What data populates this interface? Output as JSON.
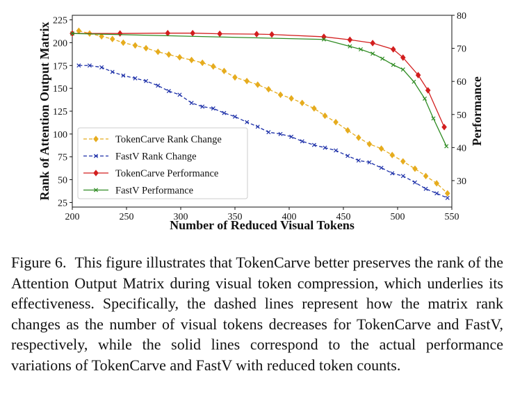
{
  "chart_data": {
    "type": "line",
    "xlabel": "Number of Reduced Visual Tokens",
    "ylabel": "Rank of Attention Output Matrix",
    "ylabel_right": "Performance",
    "xlim": [
      200,
      550
    ],
    "ylim": [
      20,
      230
    ],
    "ylim_right": [
      22,
      80
    ],
    "x_ticks": [
      200,
      250,
      300,
      350,
      400,
      450,
      500,
      550
    ],
    "y_ticks": [
      25,
      50,
      75,
      100,
      125,
      150,
      175,
      200,
      225
    ],
    "y_ticks_right": [
      30,
      40,
      50,
      60,
      70,
      80
    ],
    "legend_position": "lower-left",
    "series": [
      {
        "name": "TokenCarve Rank Change",
        "axis": "left",
        "style": "dashed",
        "marker": "diamond",
        "color": "#e6ac1e",
        "x": [
          206,
          216,
          227,
          237,
          247,
          258,
          268,
          279,
          289,
          299,
          310,
          320,
          330,
          340,
          350,
          361,
          371,
          381,
          392,
          402,
          412,
          423,
          433,
          443,
          454,
          464,
          474,
          485,
          495,
          505,
          516,
          526,
          536,
          546
        ],
        "y": [
          213,
          210,
          207,
          204,
          200,
          197,
          194,
          190,
          187,
          184,
          181,
          178,
          174,
          169,
          162,
          158,
          154,
          149,
          143,
          139,
          134,
          128,
          120,
          113,
          104,
          96,
          89,
          84,
          77,
          70,
          62,
          54,
          46,
          35
        ]
      },
      {
        "name": "FastV Rank Change",
        "axis": "left",
        "style": "dashed",
        "marker": "x",
        "color": "#1c2fa8",
        "x": [
          206,
          216,
          227,
          237,
          247,
          258,
          268,
          279,
          289,
          299,
          310,
          320,
          330,
          340,
          350,
          361,
          371,
          381,
          392,
          402,
          412,
          423,
          433,
          443,
          454,
          464,
          474,
          485,
          495,
          505,
          516,
          526,
          536,
          546
        ],
        "y": [
          175,
          175,
          173,
          168,
          164,
          161,
          158,
          153,
          147,
          143,
          134,
          130,
          128,
          123,
          119,
          113,
          108,
          102,
          100,
          97,
          92,
          88,
          85,
          82,
          76,
          71,
          69,
          63,
          57,
          54,
          47,
          40,
          35,
          30
        ]
      },
      {
        "name": "TokenCarve Performance",
        "axis": "right",
        "style": "solid",
        "marker": "diamond",
        "color": "#d21e1e",
        "x": [
          200,
          244,
          288,
          311,
          336,
          370,
          384,
          432,
          456,
          477,
          496,
          505,
          519,
          528,
          543
        ],
        "y": [
          74.5,
          74.5,
          74.6,
          74.6,
          74.4,
          74.3,
          74.2,
          73.5,
          72.6,
          71.6,
          69.7,
          67.2,
          61.9,
          57.3,
          46.2
        ]
      },
      {
        "name": "FastV Performance",
        "axis": "right",
        "style": "solid",
        "marker": "x",
        "color": "#2e8b22",
        "x": [
          200,
          432,
          456,
          466,
          477,
          486,
          496,
          505,
          515,
          525,
          533,
          545
        ],
        "y": [
          74.5,
          72.7,
          70.6,
          69.7,
          68.4,
          66.9,
          65.0,
          63.6,
          59.9,
          54.8,
          48.8,
          40.4
        ]
      }
    ]
  },
  "caption": {
    "label": "Figure 6.",
    "text": "This figure illustrates that TokenCarve better preserves the rank of the Attention Output Matrix during visual token compression, which underlies its effectiveness. Specifically, the dashed lines represent how the matrix rank changes as the number of visual tokens decreases for TokenCarve and FastV, respectively, while the solid lines correspond to the actual performance variations of TokenCarve and FastV with reduced token counts."
  }
}
